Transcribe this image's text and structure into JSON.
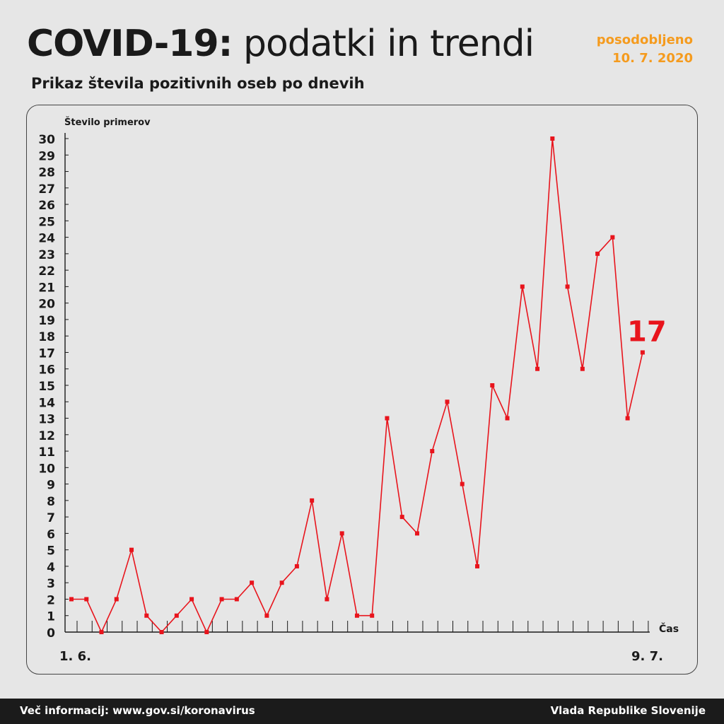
{
  "header": {
    "title_bold": "COVID-19:",
    "title_light": "podatki in trendi",
    "subtitle": "Prikaz števila pozitivnih oseb po dnevih",
    "updated_label": "posodobljeno",
    "updated_date": "10. 7. 2020"
  },
  "chart_data": {
    "type": "line",
    "title": "",
    "ylabel": "Število primerov",
    "xlabel": "Čas",
    "x_start_label": "1. 6.",
    "x_end_label": "9. 7.",
    "ylim": [
      0,
      30
    ],
    "yticks": [
      0,
      1,
      2,
      3,
      4,
      5,
      6,
      7,
      8,
      9,
      10,
      11,
      12,
      13,
      14,
      15,
      16,
      17,
      18,
      19,
      20,
      21,
      22,
      23,
      24,
      25,
      26,
      27,
      28,
      29,
      30
    ],
    "grid": false,
    "series": [
      {
        "values": [
          2,
          2,
          0,
          2,
          5,
          1,
          0,
          1,
          2,
          0,
          2,
          2,
          3,
          1,
          3,
          4,
          8,
          2,
          6,
          1,
          1,
          13,
          7,
          6,
          11,
          14,
          9,
          4,
          15,
          13,
          21,
          16,
          30,
          21,
          16,
          23,
          24,
          13,
          17
        ],
        "color": "#e8141c"
      }
    ],
    "annotation": {
      "text": "17",
      "color": "#e8141c"
    }
  },
  "footer": {
    "left_text": "Več informacij: www.gov.si/koronavirus",
    "right_text": "Vlada Republike Slovenije"
  }
}
